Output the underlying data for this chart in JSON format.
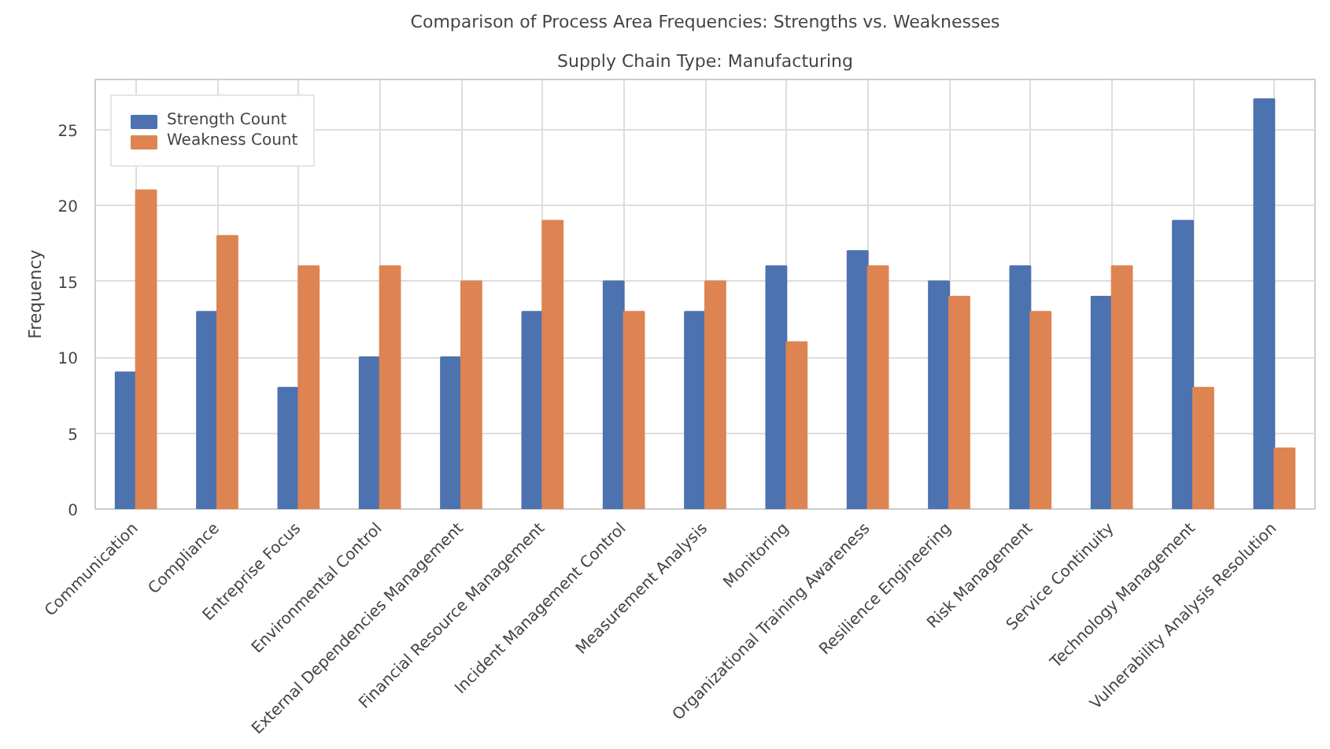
{
  "chart_data": {
    "type": "bar",
    "title": "Comparison of Process Area Frequencies: Strengths vs. Weaknesses",
    "subtitle": "Supply Chain Type: Manufacturing",
    "ylabel": "Frequency",
    "categories": [
      "Communication",
      "Compliance",
      "Entreprise Focus",
      "Environmental Control",
      "External Dependencies Management",
      "Financial Resource Management",
      "Incident Management Control",
      "Measurement Analysis",
      "Monitoring",
      "Organizational Training Awareness",
      "Resilience Engineering",
      "Risk Management",
      "Service Continuity",
      "Technology Management",
      "Vulnerability Analysis Resolution"
    ],
    "series": [
      {
        "name": "Strength Count",
        "color": "#4c72b0",
        "values": [
          9,
          13,
          8,
          10,
          10,
          13,
          15,
          13,
          16,
          17,
          15,
          16,
          14,
          19,
          27
        ]
      },
      {
        "name": "Weakness Count",
        "color": "#dd8452",
        "values": [
          21,
          18,
          16,
          16,
          15,
          19,
          13,
          15,
          11,
          16,
          14,
          13,
          16,
          8,
          4
        ]
      }
    ],
    "ylim": [
      0,
      28.3
    ],
    "yticks": [
      0,
      5,
      10,
      15,
      20,
      25
    ],
    "grid": true,
    "legend": "top left"
  }
}
